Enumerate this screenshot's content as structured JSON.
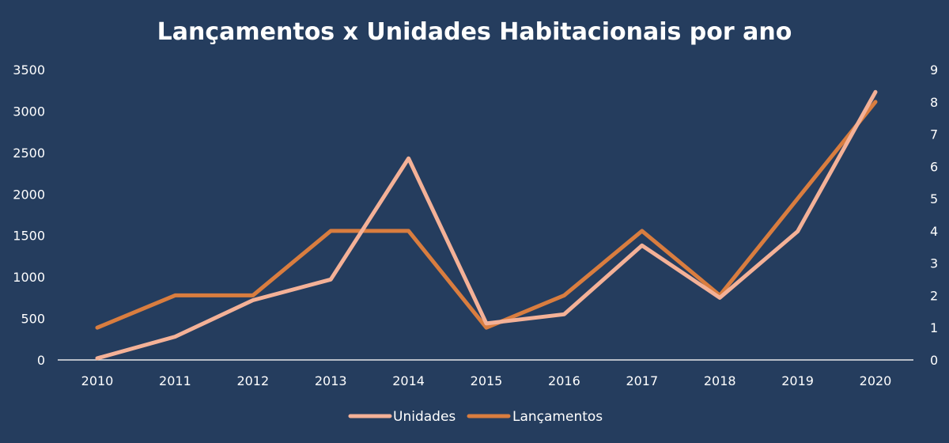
{
  "chart_data": {
    "type": "line",
    "title": "Lançamentos x Unidades Habitacionais por ano",
    "categories": [
      "2010",
      "2011",
      "2012",
      "2013",
      "2014",
      "2015",
      "2016",
      "2017",
      "2018",
      "2019",
      "2020"
    ],
    "y_left": {
      "ylim": [
        0,
        3500
      ],
      "ticks": [
        "0",
        "500",
        "1000",
        "1500",
        "2000",
        "2500",
        "3000",
        "3500"
      ]
    },
    "y_right": {
      "ylim": [
        0,
        9
      ],
      "ticks": [
        "0",
        "1",
        "2",
        "3",
        "4",
        "5",
        "6",
        "7",
        "8",
        "9"
      ]
    },
    "grid": false,
    "legend_position": "bottom",
    "series": [
      {
        "name": "Unidades",
        "axis": "left",
        "color": "#f4b197",
        "values": [
          20,
          280,
          720,
          970,
          2430,
          440,
          550,
          1380,
          750,
          1550,
          3230
        ]
      },
      {
        "name": "Lançamentos",
        "axis": "right",
        "color": "#d97d3f",
        "values": [
          1,
          2,
          2,
          4,
          4,
          1,
          2,
          4,
          2,
          5,
          8
        ]
      }
    ]
  }
}
